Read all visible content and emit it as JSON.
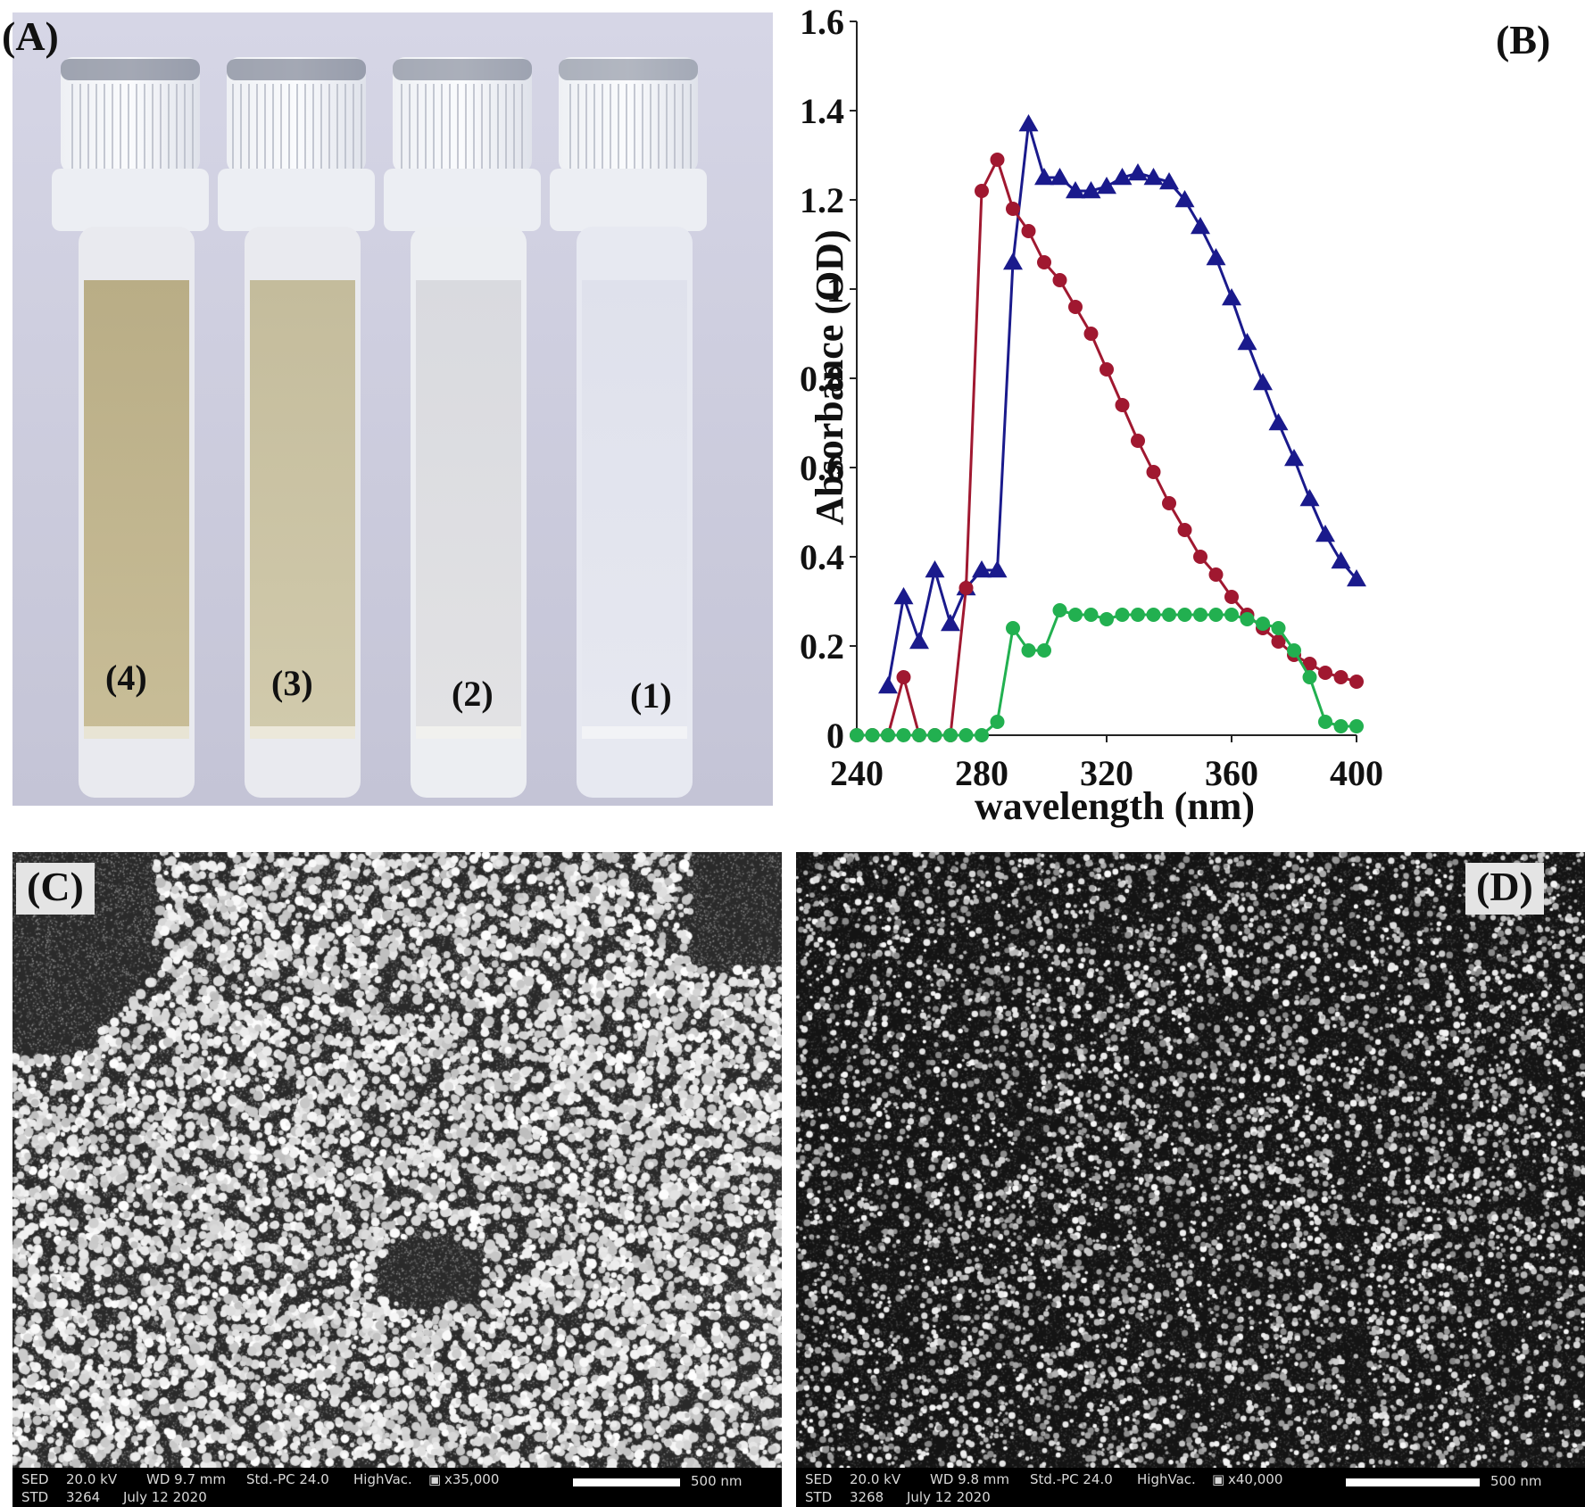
{
  "panels": {
    "a": {
      "label": "(A)",
      "vials": [
        "(4)",
        "(3)",
        "(2)",
        "(1)"
      ]
    },
    "b": {
      "label": "(B)"
    },
    "c": {
      "label": "(C)",
      "info": {
        "sed": "SED",
        "kv": "20.0 kV",
        "wd": "WD 9.7 mm",
        "std_pc": "Std.-PC 24.0",
        "vac": "HighVac.",
        "mag": "x35,000",
        "std": "STD",
        "num": "3264",
        "date": "July 12 2020",
        "scale": "500 nm"
      }
    },
    "d": {
      "label": "(D)",
      "info": {
        "sed": "SED",
        "kv": "20.0 kV",
        "wd": "WD 9.8 mm",
        "std_pc": "Std.-PC 24.0",
        "vac": "HighVac.",
        "mag": "x40,000",
        "std": "STD",
        "num": "3268",
        "date": "July 12 2020",
        "scale": "500 nm"
      }
    }
  },
  "chart_data": {
    "type": "line",
    "title": "",
    "xlabel": "wavelength (nm)",
    "ylabel": "Absorbance (OD)",
    "xlim": [
      240,
      400
    ],
    "ylim": [
      0,
      1.6
    ],
    "xticks": [
      240,
      280,
      320,
      360,
      400
    ],
    "yticks": [
      0,
      0.2,
      0.4,
      0.6,
      0.8,
      1,
      1.2,
      1.4,
      1.6
    ],
    "ytick_labels": [
      "0",
      "0.2",
      "0.4",
      "0.6",
      "0.8",
      "1",
      "1.2",
      "1.4",
      "1.6"
    ],
    "grid": false,
    "legend": "none",
    "series": [
      {
        "color": "#1a1a8c",
        "marker": "triangle",
        "x": [
          250,
          255,
          260,
          265,
          270,
          275,
          280,
          285,
          290,
          295,
          300,
          305,
          310,
          315,
          320,
          325,
          330,
          335,
          340,
          345,
          350,
          355,
          360,
          365,
          370,
          375,
          380,
          385,
          390,
          395,
          400
        ],
        "y": [
          0.11,
          0.31,
          0.21,
          0.37,
          0.25,
          0.33,
          0.37,
          0.37,
          1.06,
          1.37,
          1.25,
          1.25,
          1.22,
          1.22,
          1.23,
          1.25,
          1.26,
          1.25,
          1.24,
          1.2,
          1.14,
          1.07,
          0.98,
          0.88,
          0.79,
          0.7,
          0.62,
          0.53,
          0.45,
          0.39,
          0.35
        ]
      },
      {
        "color": "#a01830",
        "marker": "circle",
        "x": [
          240,
          245,
          250,
          255,
          260,
          265,
          270,
          275,
          280,
          285,
          290,
          295,
          300,
          305,
          310,
          315,
          320,
          325,
          330,
          335,
          340,
          345,
          350,
          355,
          360,
          365,
          370,
          375,
          380,
          385,
          390,
          395,
          400
        ],
        "y": [
          0,
          0,
          0,
          0.13,
          0,
          0,
          0,
          0.33,
          1.22,
          1.29,
          1.18,
          1.13,
          1.06,
          1.02,
          0.96,
          0.9,
          0.82,
          0.74,
          0.66,
          0.59,
          0.52,
          0.46,
          0.4,
          0.36,
          0.31,
          0.27,
          0.24,
          0.21,
          0.18,
          0.16,
          0.14,
          0.13,
          0.12
        ]
      },
      {
        "color": "#22b050",
        "marker": "circle",
        "x": [
          240,
          245,
          250,
          255,
          260,
          265,
          270,
          275,
          280,
          285,
          290,
          295,
          300,
          305,
          310,
          315,
          320,
          325,
          330,
          335,
          340,
          345,
          350,
          355,
          360,
          365,
          370,
          375,
          380,
          385,
          390,
          395,
          400
        ],
        "y": [
          0,
          0,
          0,
          0,
          0,
          0,
          0,
          0,
          0,
          0.03,
          0.24,
          0.19,
          0.19,
          0.28,
          0.27,
          0.27,
          0.26,
          0.27,
          0.27,
          0.27,
          0.27,
          0.27,
          0.27,
          0.27,
          0.27,
          0.26,
          0.25,
          0.24,
          0.19,
          0.13,
          0.03,
          0.02,
          0.02
        ]
      }
    ]
  }
}
